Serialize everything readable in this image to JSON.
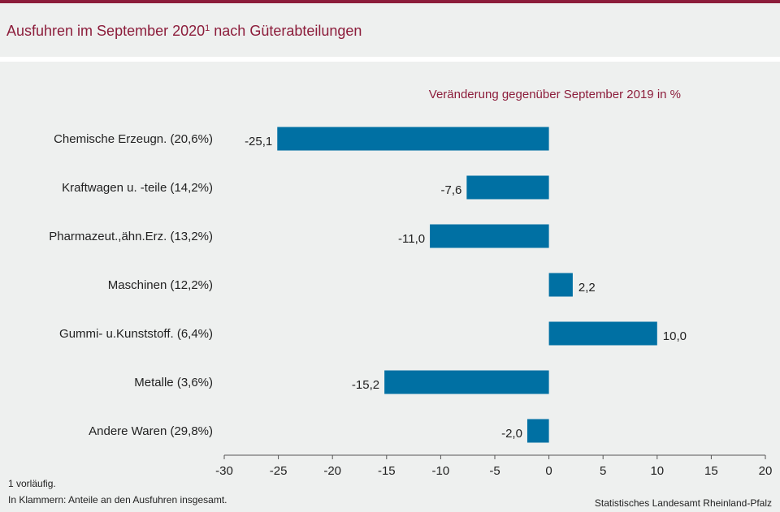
{
  "header": {
    "title": "Ausfuhren im September 2020",
    "title_footnote_mark": "1",
    "title_suffix": " nach Güterabteilungen"
  },
  "chart_data": {
    "type": "bar",
    "orientation": "horizontal",
    "title": "Ausfuhren im September 20201 nach Güterabteilungen",
    "subtitle": "Veränderung  gegenüber  September 2019 in %",
    "categories": [
      "Chemische Erzeugn. (20,6%)",
      "Kraftwagen u. -teile (14,2%)",
      "Pharmazeut.,ähn.Erz. (13,2%)",
      "Maschinen (12,2%)",
      "Gummi- u.Kunststoff. (6,4%)",
      "Metalle (3,6%)",
      "Andere Waren (29,8%)"
    ],
    "values": [
      -25.1,
      -7.6,
      -11.0,
      2.2,
      10.0,
      -15.2,
      -2.0
    ],
    "value_labels": [
      "-25,1",
      "-7,6",
      "-11,0",
      "2,2",
      "10,0",
      "-15,2",
      "-2,0"
    ],
    "xlim": [
      -30,
      20
    ],
    "xticks": [
      -30,
      -25,
      -20,
      -15,
      -10,
      -5,
      0,
      5,
      10,
      15,
      20
    ],
    "xtick_labels": [
      "-30",
      "-25",
      "-20",
      "-15",
      "-10",
      "-5",
      "0",
      "5",
      "10",
      "15",
      "20"
    ],
    "xlabel": "",
    "ylabel": "",
    "bar_color": "#0070a3",
    "grid": false
  },
  "footnotes": {
    "note1": "1 vorläufig.",
    "note2": "In Klammern:  Anteile an den Ausfuhren  insgesamt.",
    "source": "Statistisches Landesamt Rheinland-Pfalz"
  },
  "colors": {
    "accent": "#8c1d3b",
    "background": "#eef0ef",
    "bar": "#0070a3"
  }
}
